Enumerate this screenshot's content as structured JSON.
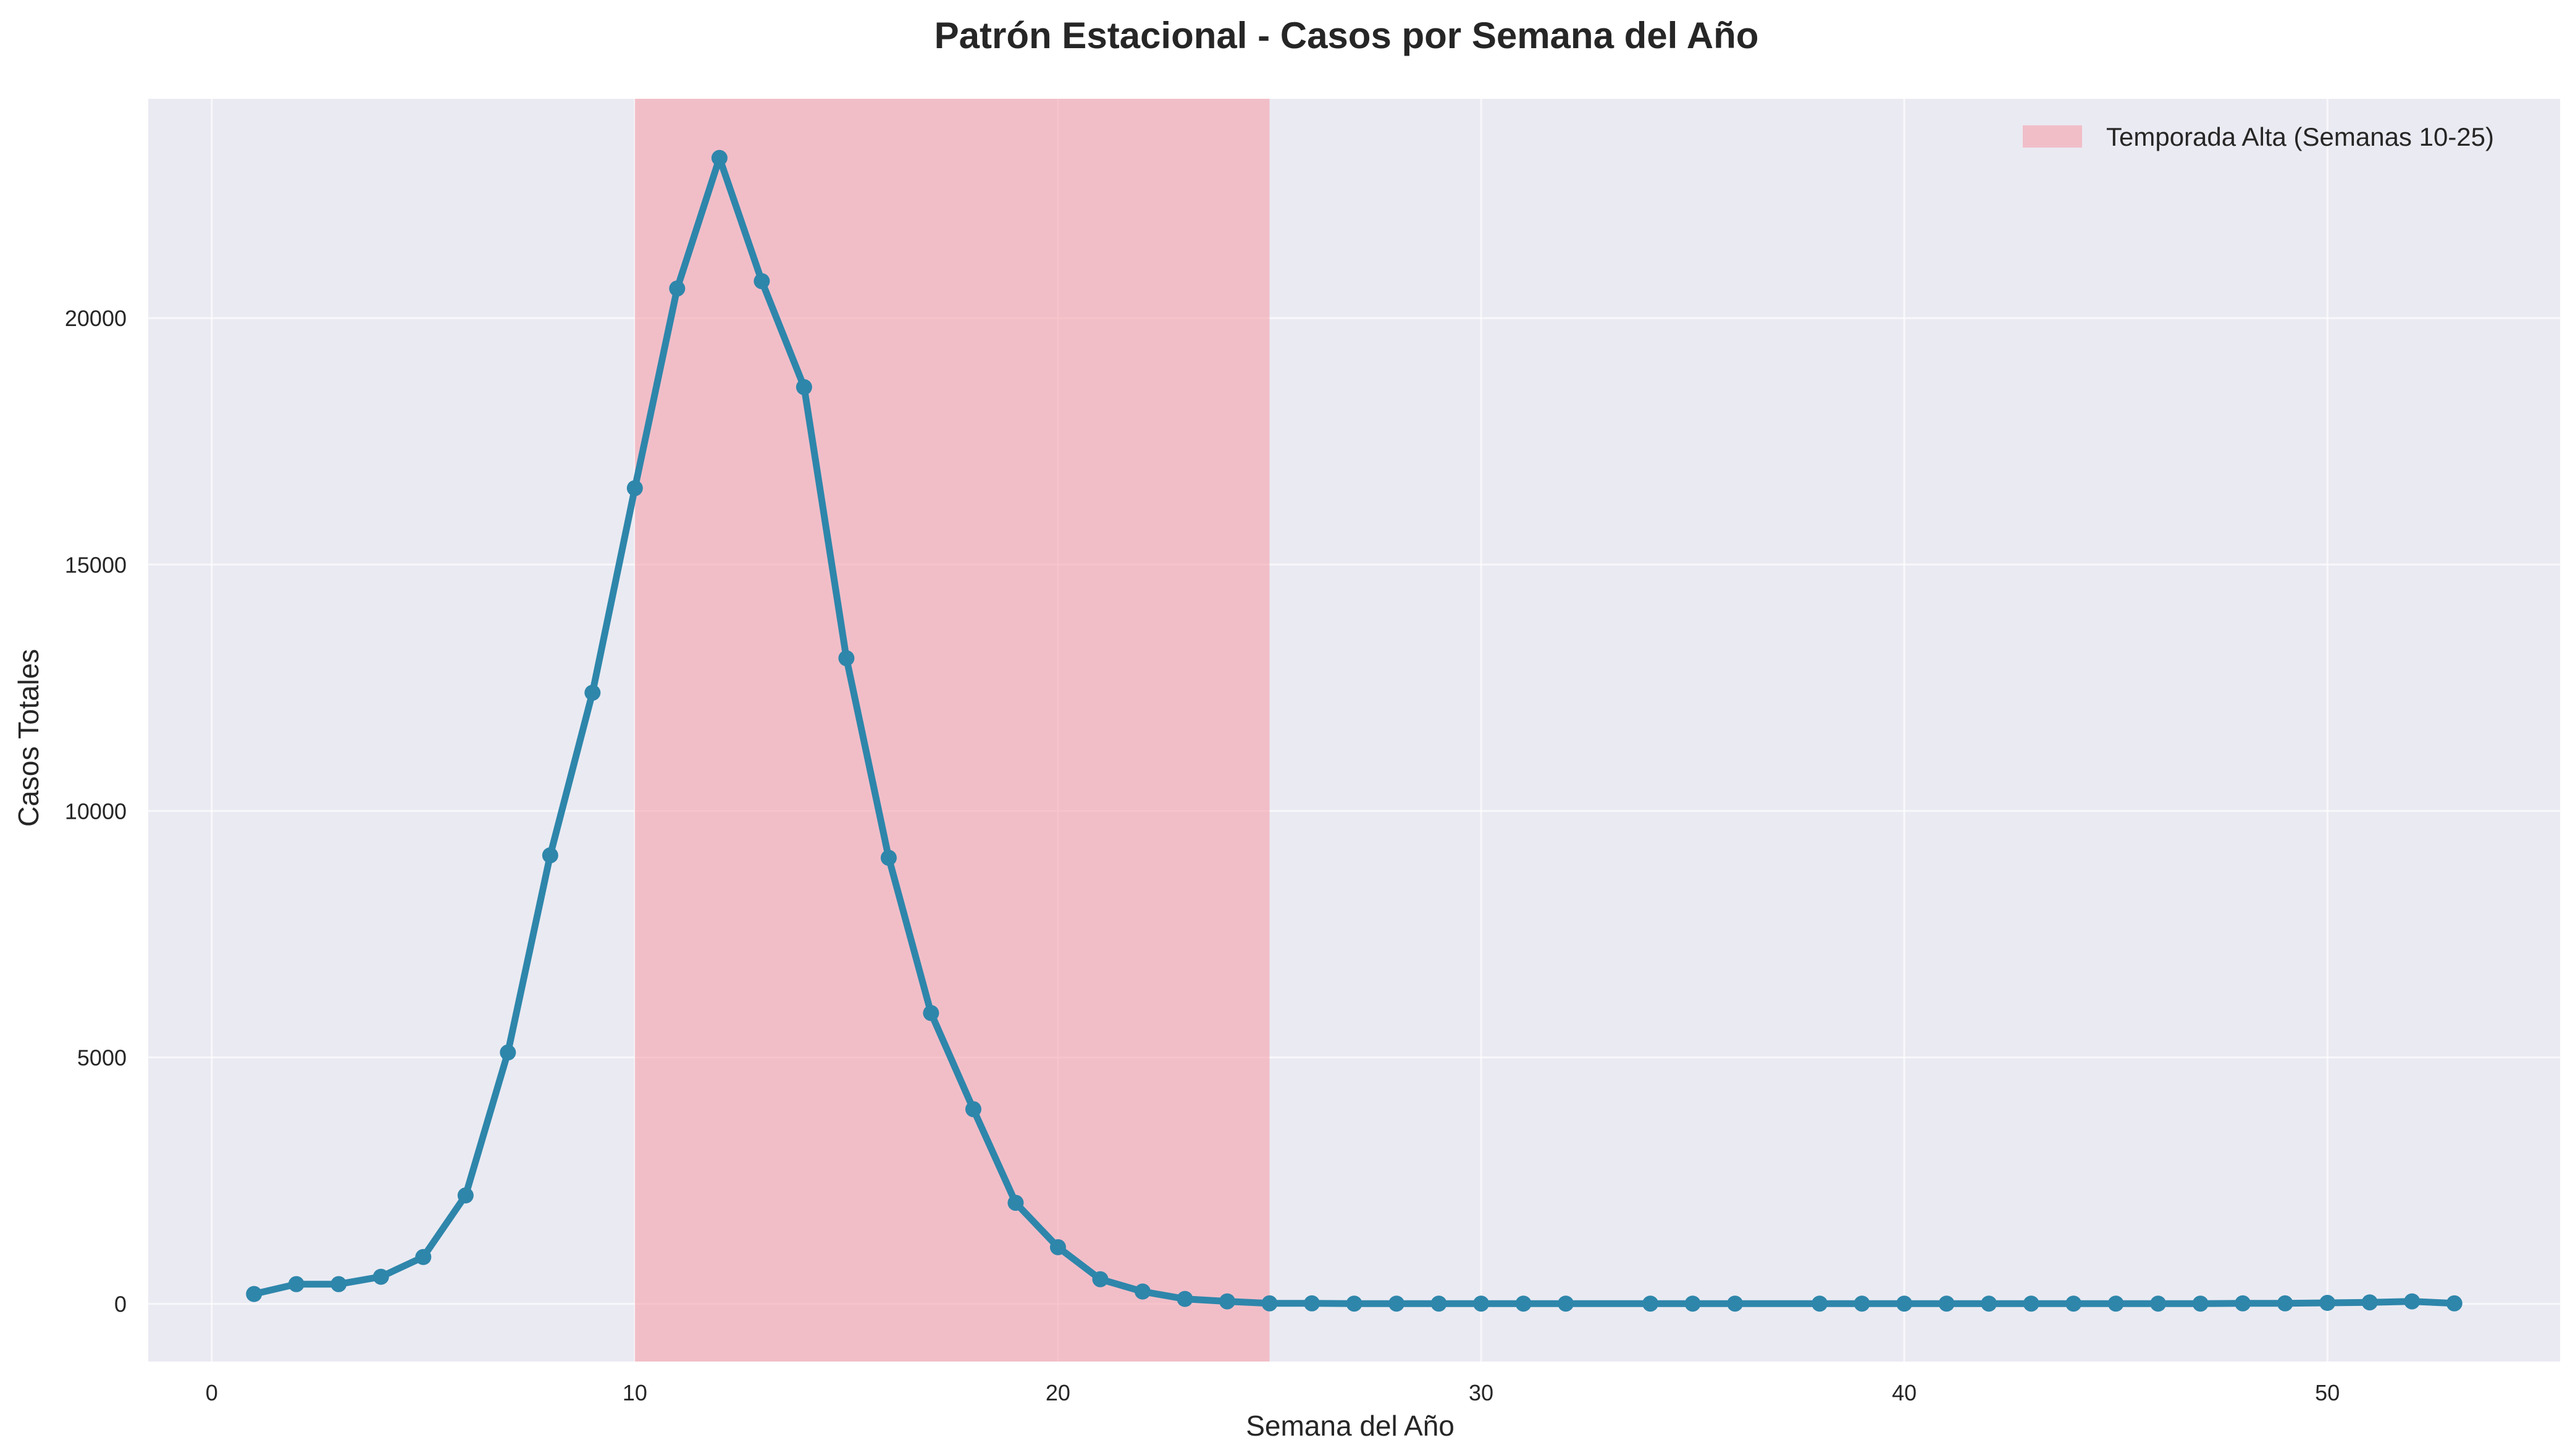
{
  "chart_data": {
    "type": "line",
    "title": "Patrón Estacional - Casos por Semana del Año",
    "xlabel": "Semana del Año",
    "ylabel": "Casos Totales",
    "xlim": [
      -1.5,
      55.5
    ],
    "ylim": [
      -1170,
      24450
    ],
    "xticks": [
      0,
      10,
      20,
      30,
      40,
      50
    ],
    "yticks": [
      0,
      5000,
      10000,
      15000,
      20000
    ],
    "grid": true,
    "legend_position": "top-right",
    "highlight_span": {
      "x_start": 10,
      "x_end": 25,
      "label": "Temporada Alta (Semanas 10-25)",
      "color": "#f4a6b0"
    },
    "colors": {
      "line": "#2e86ab",
      "plot_background": "#eaeaf2",
      "grid": "#ffffff"
    },
    "series": [
      {
        "x": [
          1,
          2,
          3,
          4,
          5,
          6,
          7,
          8,
          9,
          10,
          11,
          12,
          13,
          14,
          15,
          16,
          17,
          18,
          19,
          20,
          21,
          22,
          23,
          24,
          25,
          26,
          27,
          28,
          29,
          30,
          31,
          32,
          34,
          35,
          36,
          38,
          39,
          40,
          41,
          42,
          43,
          44,
          45,
          46,
          47,
          48,
          49,
          50,
          51,
          52,
          53
        ],
        "values": [
          200,
          400,
          400,
          550,
          950,
          2200,
          5100,
          9100,
          12400,
          16550,
          20600,
          23250,
          20750,
          18600,
          13100,
          9050,
          5900,
          3950,
          2050,
          1150,
          500,
          250,
          100,
          50,
          10,
          10,
          5,
          5,
          5,
          5,
          5,
          5,
          5,
          5,
          5,
          5,
          5,
          5,
          5,
          5,
          5,
          5,
          5,
          5,
          5,
          10,
          10,
          20,
          30,
          50,
          10
        ]
      }
    ]
  }
}
